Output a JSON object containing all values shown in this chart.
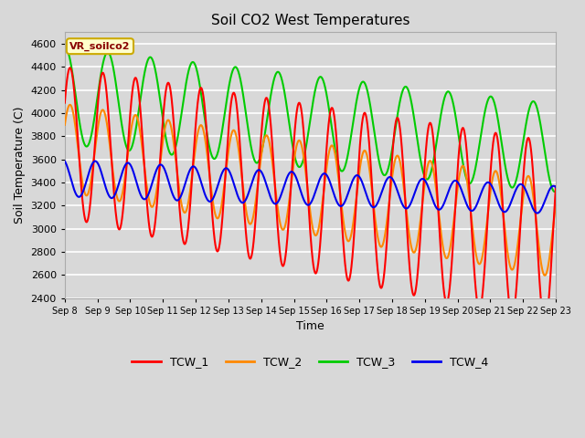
{
  "title": "Soil CO2 West Temperatures",
  "xlabel": "Time",
  "ylabel": "Soil Temperature (C)",
  "ylim": [
    2400,
    4700
  ],
  "xlim": [
    0,
    15
  ],
  "annotation": "VR_soilco2",
  "annotation_bg": "#FFFFCC",
  "annotation_border": "#CCAA00",
  "annotation_text_color": "#880000",
  "background_color": "#D8D8D8",
  "plot_bg": "#D8D8D8",
  "grid_color": "#FFFFFF",
  "xtick_labels": [
    "Sep 8",
    "Sep 9",
    "Sep 10",
    "Sep 11",
    "Sep 12",
    "Sep 13",
    "Sep 14",
    "Sep 15",
    "Sep 16",
    "Sep 17",
    "Sep 18",
    "Sep 19",
    "Sep 20",
    "Sep 21",
    "Sep 22",
    "Sep 23"
  ],
  "legend_entries": [
    "TCW_1",
    "TCW_2",
    "TCW_3",
    "TCW_4"
  ],
  "colors": [
    "#FF0000",
    "#FF8800",
    "#00CC00",
    "#0000EE"
  ],
  "linewidth": 1.5,
  "figsize": [
    6.4,
    4.8
  ],
  "dpi": 100
}
